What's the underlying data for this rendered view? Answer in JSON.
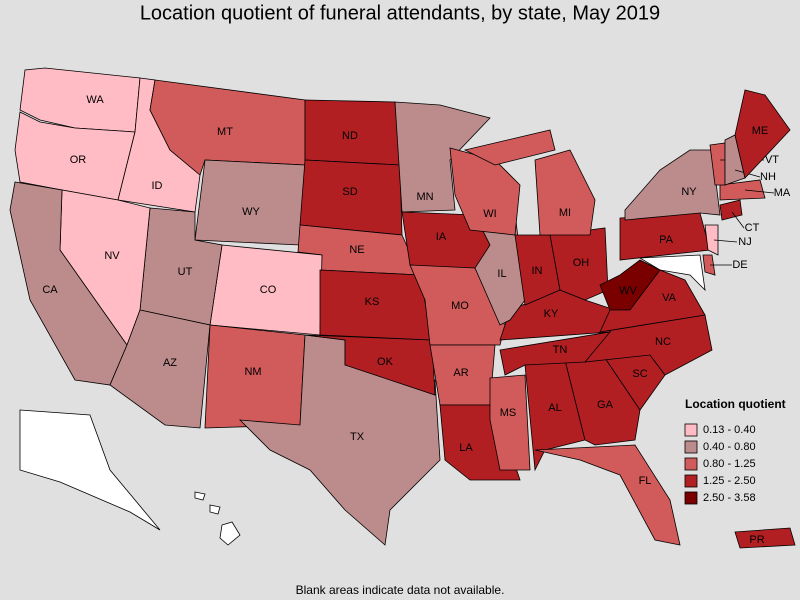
{
  "title": "Location quotient of funeral attendants, by state, May 2019",
  "states": [
    {
      "abbr": "WA",
      "bin": 0
    },
    {
      "abbr": "OR",
      "bin": 0
    },
    {
      "abbr": "ID",
      "bin": 0
    },
    {
      "abbr": "MT",
      "bin": 2
    },
    {
      "abbr": "WY",
      "bin": 1
    },
    {
      "abbr": "ND",
      "bin": 3
    },
    {
      "abbr": "SD",
      "bin": 3
    },
    {
      "abbr": "NE",
      "bin": 2
    },
    {
      "abbr": "CO",
      "bin": 0
    },
    {
      "abbr": "UT",
      "bin": 1
    },
    {
      "abbr": "NV",
      "bin": 0
    },
    {
      "abbr": "CA",
      "bin": 1
    },
    {
      "abbr": "AZ",
      "bin": 1
    },
    {
      "abbr": "NM",
      "bin": 2
    },
    {
      "abbr": "TX",
      "bin": 1
    },
    {
      "abbr": "OK",
      "bin": 3
    },
    {
      "abbr": "KS",
      "bin": 3
    },
    {
      "abbr": "MN",
      "bin": 1
    },
    {
      "abbr": "IA",
      "bin": 3
    },
    {
      "abbr": "MO",
      "bin": 2
    },
    {
      "abbr": "AR",
      "bin": 2
    },
    {
      "abbr": "LA",
      "bin": 3
    },
    {
      "abbr": "MS",
      "bin": 2
    },
    {
      "abbr": "AL",
      "bin": 3
    },
    {
      "abbr": "GA",
      "bin": 3
    },
    {
      "abbr": "FL",
      "bin": 2
    },
    {
      "abbr": "SC",
      "bin": 3
    },
    {
      "abbr": "NC",
      "bin": 3
    },
    {
      "abbr": "TN",
      "bin": 3
    },
    {
      "abbr": "KY",
      "bin": 3
    },
    {
      "abbr": "IL",
      "bin": 1
    },
    {
      "abbr": "IN",
      "bin": 3
    },
    {
      "abbr": "OH",
      "bin": 3
    },
    {
      "abbr": "MI",
      "bin": 2
    },
    {
      "abbr": "WI",
      "bin": 2
    },
    {
      "abbr": "WV",
      "bin": 4
    },
    {
      "abbr": "VA",
      "bin": 3
    },
    {
      "abbr": "PA",
      "bin": 3
    },
    {
      "abbr": "NY",
      "bin": 1
    },
    {
      "abbr": "DE",
      "bin": 2
    },
    {
      "abbr": "NJ",
      "bin": 0
    },
    {
      "abbr": "CT",
      "bin": 3
    },
    {
      "abbr": "MA",
      "bin": 2
    },
    {
      "abbr": "VT",
      "bin": 2
    },
    {
      "abbr": "NH",
      "bin": 1
    },
    {
      "abbr": "ME",
      "bin": 3
    },
    {
      "abbr": "PR",
      "bin": 3
    }
  ],
  "legend": {
    "title": "Location quotient",
    "items": [
      {
        "label": "0.13 - 0.40",
        "color": "#ffbcc4"
      },
      {
        "label": "0.40 - 0.80",
        "color": "#bc8c8c"
      },
      {
        "label": "0.80 - 1.25",
        "color": "#d15b5b"
      },
      {
        "label": "1.25 - 2.50",
        "color": "#b21f23"
      },
      {
        "label": "2.50 - 3.58",
        "color": "#7a0000"
      }
    ]
  },
  "footnote": "Blank areas indicate data not available."
}
